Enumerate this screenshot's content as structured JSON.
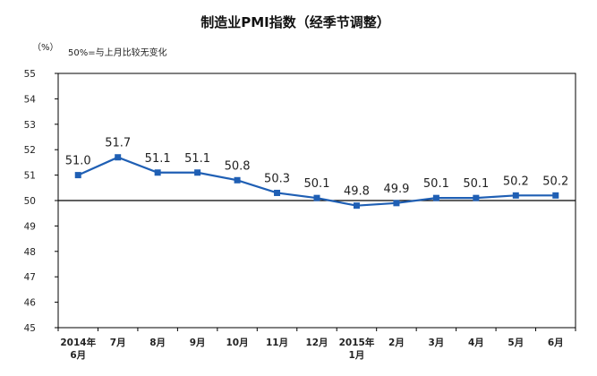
{
  "chart_data": {
    "type": "line",
    "title": "制造业PMI指数（经季节调整）",
    "unit_label": "（%）",
    "reference_note": "50%=与上月比较无变化",
    "ylim": [
      45,
      55
    ],
    "y_ticks": [
      "45",
      "46",
      "47",
      "48",
      "49",
      "50",
      "51",
      "52",
      "53",
      "54",
      "55"
    ],
    "reference_value": 50,
    "grid": false,
    "categories": [
      [
        "2014年",
        "6月"
      ],
      [
        "7月"
      ],
      [
        "8月"
      ],
      [
        "9月"
      ],
      [
        "10月"
      ],
      [
        "11月"
      ],
      [
        "12月"
      ],
      [
        "2015年",
        "1月"
      ],
      [
        "2月"
      ],
      [
        "3月"
      ],
      [
        "4月"
      ],
      [
        "5月"
      ],
      [
        "6月"
      ]
    ],
    "series": [
      {
        "values": [
          51.0,
          51.7,
          51.1,
          51.1,
          50.8,
          50.3,
          50.1,
          49.8,
          49.9,
          50.1,
          50.1,
          50.2,
          50.2
        ],
        "labels": [
          "51.0",
          "51.7",
          "51.1",
          "51.1",
          "50.8",
          "50.3",
          "50.1",
          "49.8",
          "49.9",
          "50.1",
          "50.1",
          "50.2",
          "50.2"
        ],
        "color": "#1F5FB4",
        "marker": "square"
      }
    ]
  }
}
